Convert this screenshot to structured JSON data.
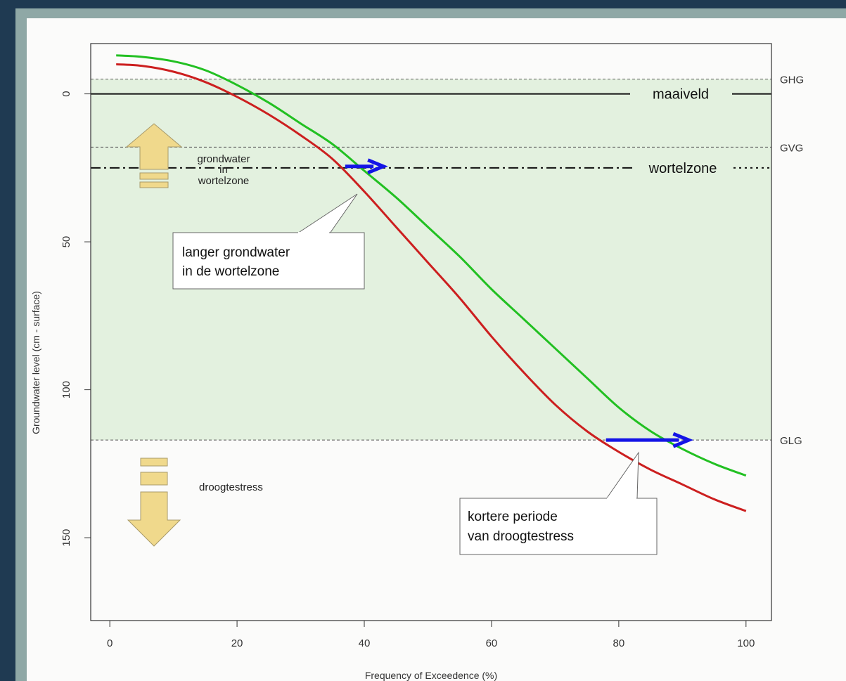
{
  "chart_data": {
    "type": "line",
    "title": "",
    "xlabel": "Frequency of Exceedence (%)",
    "ylabel": "Groundwater level (cm - surface)",
    "xlim": [
      -3,
      104
    ],
    "ylim": [
      -17,
      178
    ],
    "y_inverted": true,
    "grid": false,
    "x_ticks": [
      0,
      20,
      40,
      60,
      80,
      100
    ],
    "y_ticks": [
      0,
      50,
      100,
      150
    ],
    "series": [
      {
        "color": "#22c022",
        "x": [
          1,
          5,
          10,
          15,
          20,
          25,
          30,
          35,
          40,
          45,
          50,
          55,
          60,
          65,
          70,
          75,
          80,
          85,
          90,
          95,
          100
        ],
        "y": [
          -13,
          -12.5,
          -11,
          -8,
          -3,
          3,
          10,
          17,
          26,
          35,
          45,
          55,
          66,
          76,
          86,
          96,
          106,
          114,
          120,
          125,
          129
        ]
      },
      {
        "color": "#cc1f1f",
        "x": [
          1,
          5,
          10,
          15,
          20,
          25,
          30,
          35,
          40,
          45,
          50,
          55,
          60,
          65,
          70,
          75,
          80,
          85,
          90,
          95,
          100
        ],
        "y": [
          -10,
          -9.5,
          -7.5,
          -4,
          1,
          7,
          14,
          22,
          33,
          45,
          57,
          69,
          82,
          94,
          105,
          114,
          121,
          127,
          132,
          137,
          141
        ]
      }
    ],
    "reference_lines": [
      {
        "label": "GHG",
        "y": -5
      },
      {
        "label": "GVG",
        "y": 18
      },
      {
        "label": "GLG",
        "y": 117
      }
    ],
    "level_lines": [
      {
        "label": "maaiveld",
        "y": 0
      },
      {
        "label": "wortelzone",
        "y": 25
      }
    ],
    "shaded_band": {
      "from": -5,
      "to": 117,
      "color": "#e3f1df"
    },
    "annotations": {
      "top_arrow_text": [
        "grondwater",
        "in",
        "wortelzone"
      ],
      "bottom_arrow_text": "droogtestress",
      "box1": [
        "langer grondwater",
        "in de wortelzone"
      ],
      "box2": [
        "kortere periode",
        "van droogtestress"
      ]
    },
    "blue_arrows": [
      {
        "x_from": 37,
        "x_to": 43,
        "y": 24.5
      },
      {
        "x_from": 78,
        "x_to": 91,
        "y": 117
      }
    ],
    "accent_colors": {
      "arrow_fill": "#f0d98c",
      "arrow_stroke": "#a89a6a",
      "blue_arrow": "#1414e6"
    }
  }
}
